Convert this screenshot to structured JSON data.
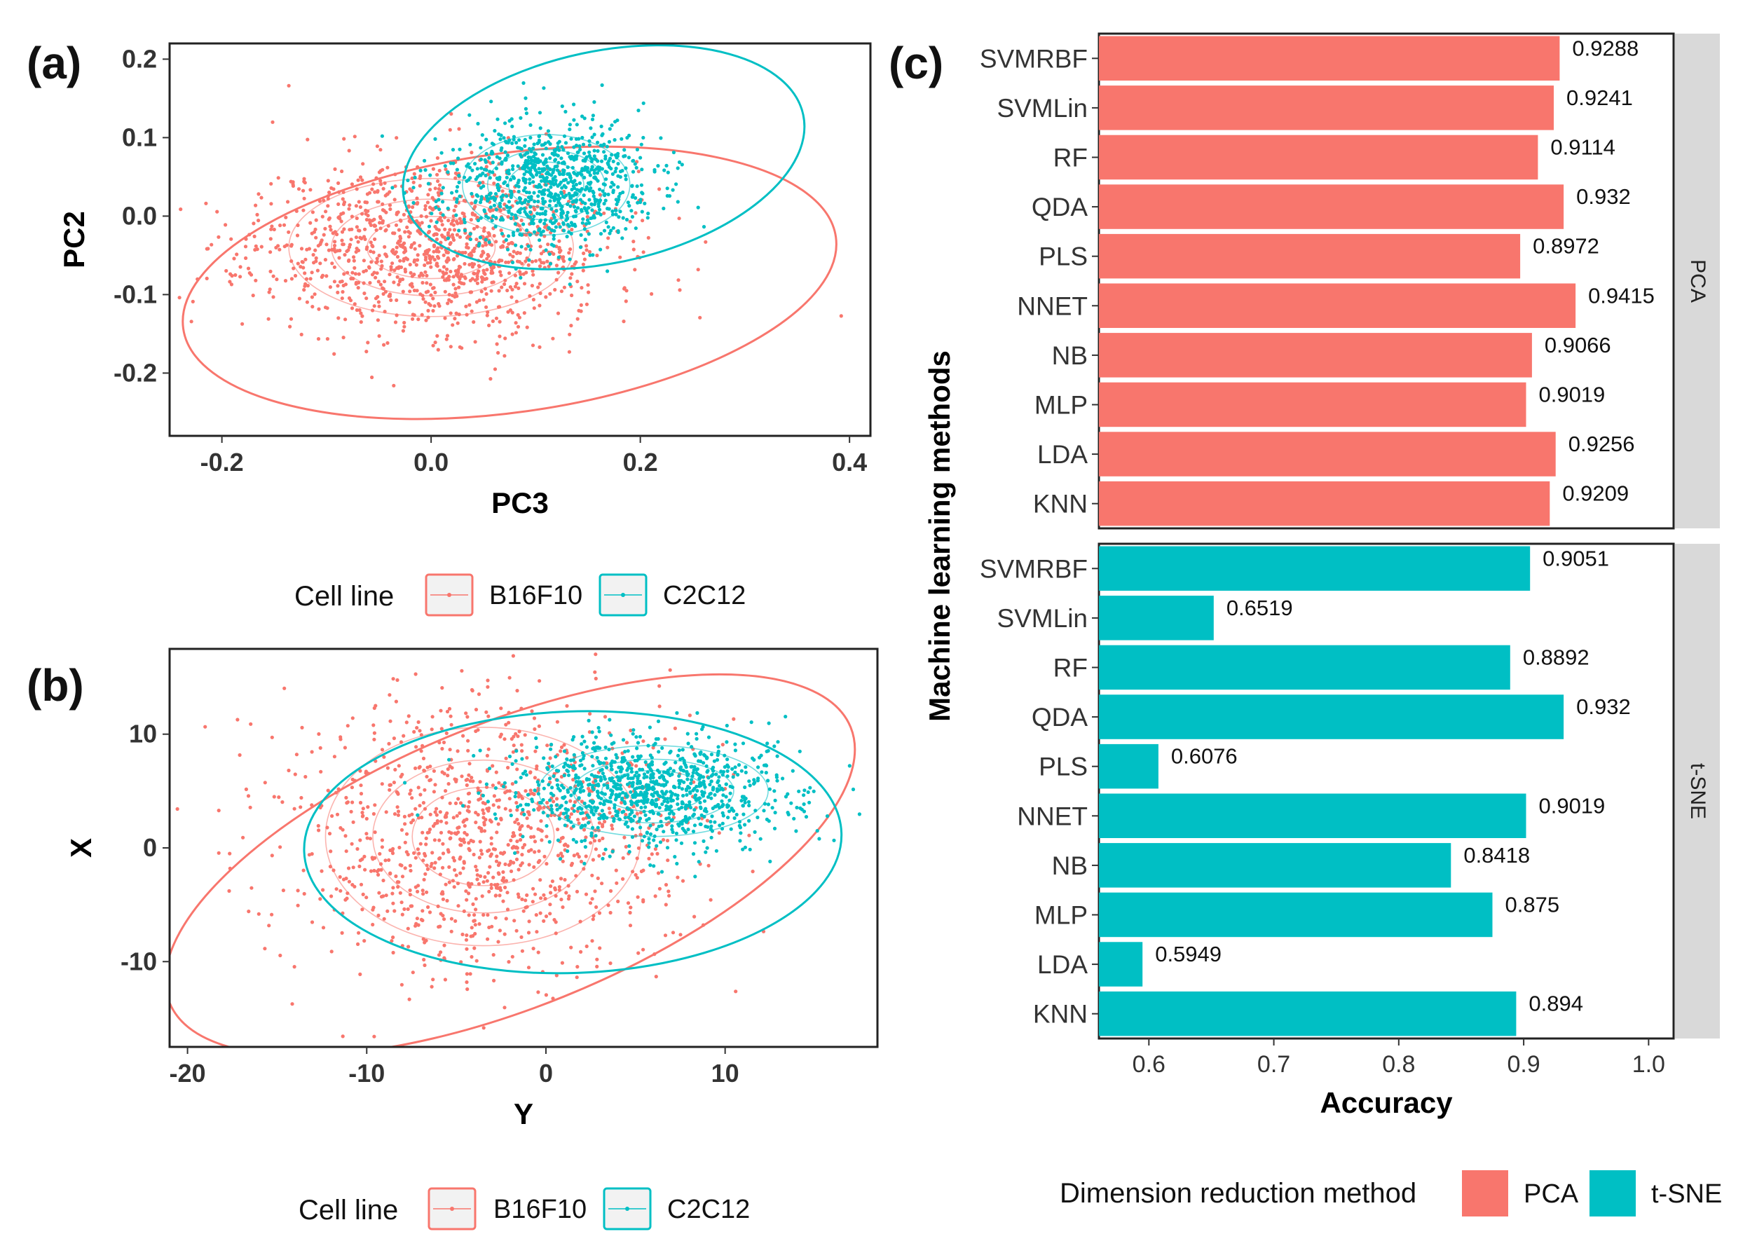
{
  "colors": {
    "b16f10": "#F8766D",
    "c2c12": "#00BFC4",
    "pca": "#F8766D",
    "tsne": "#00BFC4",
    "strip": "#D9D9D9"
  },
  "chart_data": [
    {
      "panel": "(a)",
      "type": "scatter",
      "xlabel": "PC3",
      "ylabel": "PC2",
      "xlim": [
        -0.25,
        0.42
      ],
      "ylim": [
        -0.28,
        0.22
      ],
      "xticks": [
        -0.2,
        0.0,
        0.2,
        0.4
      ],
      "xtick_labels": [
        "-0.2",
        "0.0",
        "0.2",
        "0.4"
      ],
      "yticks": [
        -0.2,
        -0.1,
        0.0,
        0.1,
        0.2
      ],
      "ytick_labels": [
        "-0.2",
        "-0.1",
        "0.0",
        "0.1",
        "0.2"
      ],
      "legend": {
        "title": "Cell line",
        "entries": [
          "B16F10",
          "C2C12"
        ]
      },
      "series": [
        {
          "name": "B16F10",
          "center": [
            0.0,
            -0.04
          ],
          "spread": [
            0.085,
            0.055
          ],
          "n": 1200,
          "seed": 11,
          "ellipse": {
            "center": [
              0.075,
              -0.085
            ],
            "rx": 0.315,
            "ry": 0.165,
            "angle": -8
          }
        },
        {
          "name": "C2C12",
          "center": [
            0.11,
            0.04
          ],
          "spread": [
            0.05,
            0.04
          ],
          "n": 900,
          "seed": 23,
          "ellipse": {
            "center": [
              0.165,
              0.075
            ],
            "rx": 0.195,
            "ry": 0.135,
            "angle": -12
          }
        }
      ]
    },
    {
      "panel": "(b)",
      "type": "scatter",
      "xlabel": "Y",
      "ylabel": "X",
      "xlim": [
        -21,
        18.5
      ],
      "ylim": [
        -17.5,
        17.5
      ],
      "xticks": [
        -20,
        -10,
        0,
        10
      ],
      "xtick_labels": [
        "-20",
        "-10",
        "0",
        "10"
      ],
      "yticks": [
        -10,
        0,
        10
      ],
      "ytick_labels": [
        "-10",
        "0",
        "10"
      ],
      "legend": {
        "title": "Cell line",
        "entries": [
          "B16F10",
          "C2C12"
        ]
      },
      "series": [
        {
          "name": "B16F10",
          "center": [
            -3.5,
            1.0
          ],
          "spread": [
            5.5,
            6.0
          ],
          "n": 1100,
          "seed": 37,
          "ellipse": {
            "center": [
              -2.0,
              -1.5
            ],
            "rx": 20.5,
            "ry": 12.5,
            "angle": -22
          }
        },
        {
          "name": "C2C12",
          "center": [
            6.0,
            5.0
          ],
          "spread": [
            4.0,
            2.5
          ],
          "n": 1000,
          "seed": 53,
          "ellipse": {
            "center": [
              1.5,
              0.5
            ],
            "rx": 15.0,
            "ry": 11.5,
            "angle": -2
          }
        }
      ]
    },
    {
      "panel": "(c)",
      "type": "bar",
      "orientation": "horizontal",
      "xlabel": "Accuracy",
      "ylabel": "Machine learning methods",
      "xlim": [
        0.56,
        1.02
      ],
      "xticks": [
        0.6,
        0.7,
        0.8,
        0.9,
        1.0
      ],
      "xtick_labels": [
        "0.6",
        "0.7",
        "0.8",
        "0.9",
        "1.0"
      ],
      "categories": [
        "SVMRBF",
        "SVMLin",
        "RF",
        "QDA",
        "PLS",
        "NNET",
        "NB",
        "MLP",
        "LDA",
        "KNN"
      ],
      "legend": {
        "title": "Dimension reduction method",
        "entries": [
          "PCA",
          "t-SNE"
        ]
      },
      "series": [
        {
          "name": "PCA",
          "values": [
            0.9288,
            0.9241,
            0.9114,
            0.932,
            0.8972,
            0.9415,
            0.9066,
            0.9019,
            0.9256,
            0.9209
          ],
          "labels": [
            "0.9288",
            "0.9241",
            "0.9114",
            "0.932",
            "0.8972",
            "0.9415",
            "0.9066",
            "0.9019",
            "0.9256",
            "0.9209"
          ]
        },
        {
          "name": "t-SNE",
          "values": [
            0.9051,
            0.6519,
            0.8892,
            0.932,
            0.6076,
            0.9019,
            0.8418,
            0.875,
            0.5949,
            0.894
          ],
          "labels": [
            "0.9051",
            "0.6519",
            "0.8892",
            "0.932",
            "0.6076",
            "0.9019",
            "0.8418",
            "0.875",
            "0.5949",
            "0.894"
          ]
        }
      ]
    }
  ]
}
